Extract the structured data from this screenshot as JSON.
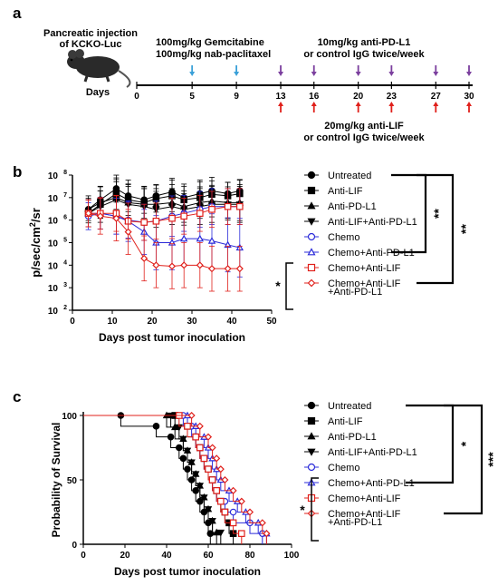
{
  "panel_labels": {
    "a": "a",
    "b": "b",
    "c": "c"
  },
  "panel_a": {
    "title_line1": "Pancreatic injection",
    "title_line2": "of KCKO-Luc",
    "treatment_chemo_1": "100mg/kg Gemcitabine",
    "treatment_chemo_2": "100mg/kg nab-paclitaxel",
    "treatment_pdl1_1": "10mg/kg anti-PD-L1",
    "treatment_pdl1_2": "or control IgG twice/week",
    "treatment_lif_1": "20mg/kg anti-LIF",
    "treatment_lif_2": "or control IgG twice/week",
    "axis_label": "Days",
    "day_ticks": [
      "0",
      "5",
      "9",
      "13",
      "16",
      "20",
      "23",
      "27",
      "30"
    ],
    "chemo_days": [
      5,
      9
    ],
    "pdl1_days": [
      13,
      16,
      20,
      23,
      27,
      30
    ],
    "lif_days": [
      13,
      16,
      20,
      23,
      27,
      30
    ],
    "colors": {
      "chemo_arrow": "#3aa0d8",
      "pdl1_arrow": "#7b3f9e",
      "lif_arrow": "#e0201b"
    },
    "icon": "mouse-icon"
  },
  "panel_b": {
    "xlabel": "Days post tumor inoculation",
    "ylabel_parts": [
      "p/sec/cm",
      "2",
      "/sr"
    ],
    "x_ticks": [
      "0",
      "10",
      "20",
      "30",
      "40",
      "50"
    ],
    "y_tick_bases": [
      "10",
      "10",
      "10",
      "10",
      "10",
      "10",
      "10"
    ],
    "y_tick_exps": [
      "2",
      "3",
      "4",
      "5",
      "6",
      "7",
      "8"
    ],
    "legend": [
      "Untreated",
      "Anti-LIF",
      "Anti-PD-L1",
      "Anti-LIF+Anti-PD-L1",
      "Chemo",
      "Chemo+Anti-PD-L1",
      "Chemo+Anti-LIF",
      "Chemo+Anti-LIF",
      "+Anti-PD-L1"
    ],
    "significance": [
      "**",
      "**",
      "*"
    ]
  },
  "panel_c": {
    "ylabel": "Probability of Survival",
    "xlabel": "Days post tumor inoculation",
    "x_ticks": [
      "0",
      "20",
      "40",
      "60",
      "80",
      "100"
    ],
    "y_ticks": [
      "0",
      "50",
      "100"
    ],
    "legend": [
      "Untreated",
      "Anti-LIF",
      "Anti-PD-L1",
      "Anti-LIF+Anti-PD-L1",
      "Chemo",
      "Chemo+Anti-PD-L1",
      "Chemo+Anti-LIF",
      "Chemo+Anti-LIF",
      "+Anti-PD-L1"
    ],
    "significance": [
      "*",
      "***",
      "*"
    ]
  },
  "series_styles": [
    {
      "color": "#000000",
      "marker": "circle",
      "fill": true
    },
    {
      "color": "#000000",
      "marker": "square",
      "fill": true
    },
    {
      "color": "#000000",
      "marker": "triangle-up",
      "fill": true
    },
    {
      "color": "#000000",
      "marker": "triangle-down",
      "fill": true
    },
    {
      "color": "#2b2bd9",
      "marker": "circle",
      "fill": false
    },
    {
      "color": "#2b2bd9",
      "marker": "triangle-up",
      "fill": false
    },
    {
      "color": "#e0201b",
      "marker": "square",
      "fill": false
    },
    {
      "color": "#e0201b",
      "marker": "diamond",
      "fill": false
    }
  ],
  "chart_data": [
    {
      "type": "line",
      "ylim": [
        100,
        100000000
      ],
      "xlim": [
        0,
        50
      ],
      "log_y": true,
      "x": [
        4,
        7,
        11,
        14,
        18,
        21,
        25,
        28,
        32,
        35,
        39,
        42
      ],
      "series": [
        {
          "name": "Untreated",
          "values": [
            3000000,
            8000000,
            25000000,
            12000000,
            8000000,
            12000000,
            18000000,
            10000000,
            15000000,
            20000000,
            15000000,
            20000000
          ],
          "err": [
            0.5,
            0.6,
            0.6,
            0.7,
            0.6,
            0.5,
            0.6,
            0.6,
            0.6,
            0.6,
            0.5,
            0.5
          ]
        },
        {
          "name": "Anti-LIF",
          "values": [
            2000000,
            5000000,
            15000000,
            8000000,
            6000000,
            9000000,
            12000000,
            8000000,
            10000000,
            14000000,
            12000000,
            15000000
          ],
          "err": [
            0.6,
            0.6,
            0.7,
            0.7,
            0.7,
            0.6,
            0.7,
            0.6,
            0.7,
            0.6,
            0.6,
            0.6
          ]
        },
        {
          "name": "Anti-PD-L1",
          "values": [
            3000000,
            6000000,
            10000000,
            6000000,
            5000000,
            5000000,
            6000000,
            4000000,
            6000000,
            7000000,
            6000000,
            6000000
          ],
          "err": [
            0.6,
            0.7,
            0.8,
            0.8,
            0.7,
            0.7,
            0.8,
            0.7,
            0.7,
            0.7,
            0.7,
            0.8
          ]
        },
        {
          "name": "Anti-LIF+Anti-PD-L1",
          "values": [
            2000000,
            4000000,
            8000000,
            5000000,
            4000000,
            3000000,
            4000000,
            3000000,
            4000000,
            5000000,
            5000000,
            5000000
          ],
          "err": [
            0.6,
            0.7,
            0.8,
            0.8,
            0.8,
            0.8,
            0.8,
            0.7,
            0.8,
            0.8,
            0.7,
            0.8
          ]
        },
        {
          "name": "Chemo",
          "values": [
            1500000,
            2000000,
            1500000,
            1000000,
            800000,
            900000,
            1500000,
            2000000,
            3000000,
            4000000,
            4000000,
            4000000
          ],
          "err": [
            0.6,
            0.7,
            0.8,
            0.8,
            0.8,
            0.9,
            0.9,
            0.8,
            0.8,
            0.8,
            0.8,
            0.8
          ]
        },
        {
          "name": "Chemo+Anti-PD-L1",
          "values": [
            2000000,
            2000000,
            1500000,
            900000,
            300000,
            100000,
            100000,
            150000,
            150000,
            120000,
            80000,
            60000
          ],
          "err": [
            0.6,
            0.7,
            0.8,
            0.9,
            1.0,
            1.2,
            1.2,
            1.2,
            1.2,
            1.2,
            1.2,
            1.3
          ]
        },
        {
          "name": "Chemo+Anti-LIF",
          "values": [
            2000000,
            2000000,
            2000000,
            900000,
            800000,
            900000,
            1200000,
            1500000,
            2000000,
            3000000,
            4000000,
            4000000
          ],
          "err": [
            0.6,
            0.7,
            0.8,
            0.8,
            0.8,
            0.8,
            0.9,
            0.8,
            0.8,
            0.8,
            0.8,
            0.8
          ]
        },
        {
          "name": "Chemo+Anti-LIF +Anti-PD-L1",
          "values": [
            2000000,
            1500000,
            1200000,
            300000,
            20000,
            10000,
            9000,
            10000,
            10000,
            7000,
            7000,
            7000
          ],
          "err": [
            0.6,
            0.8,
            1.0,
            1.0,
            1.0,
            1.0,
            1.0,
            1.0,
            1.0,
            1.0,
            1.0,
            1.0
          ]
        }
      ]
    },
    {
      "type": "line",
      "step": true,
      "xlim": [
        0,
        100
      ],
      "ylim": [
        0,
        100
      ],
      "series": [
        {
          "name": "Untreated",
          "events": [
            18,
            35,
            42,
            46,
            48,
            50,
            52,
            54,
            56,
            58,
            60,
            61
          ]
        },
        {
          "name": "Anti-LIF",
          "events": [
            44,
            50,
            54,
            56,
            58,
            60,
            62,
            64,
            66,
            68,
            70,
            72
          ]
        },
        {
          "name": "Anti-PD-L1",
          "events": [
            40,
            44,
            48,
            50,
            52,
            54,
            56,
            58,
            60,
            62,
            64
          ]
        },
        {
          "name": "Anti-LIF+Anti-PD-L1",
          "events": [
            42,
            46,
            48,
            50,
            52,
            54,
            56,
            58,
            60,
            62,
            66
          ]
        },
        {
          "name": "Chemo",
          "events": [
            48,
            52,
            54,
            56,
            58,
            60,
            62,
            64,
            68,
            72,
            80,
            86
          ]
        },
        {
          "name": "Chemo+Anti-PD-L1",
          "events": [
            50,
            54,
            58,
            60,
            62,
            64,
            66,
            70,
            74,
            78,
            84,
            88
          ]
        },
        {
          "name": "Chemo+Anti-LIF",
          "events": [
            46,
            50,
            54,
            56,
            58,
            60,
            62,
            64,
            66,
            68,
            72,
            76
          ]
        },
        {
          "name": "Chemo+Anti-LIF +Anti-PD-L1",
          "events": [
            52,
            56,
            60,
            62,
            64,
            66,
            68,
            72,
            76,
            80,
            86,
            88
          ]
        }
      ]
    }
  ]
}
